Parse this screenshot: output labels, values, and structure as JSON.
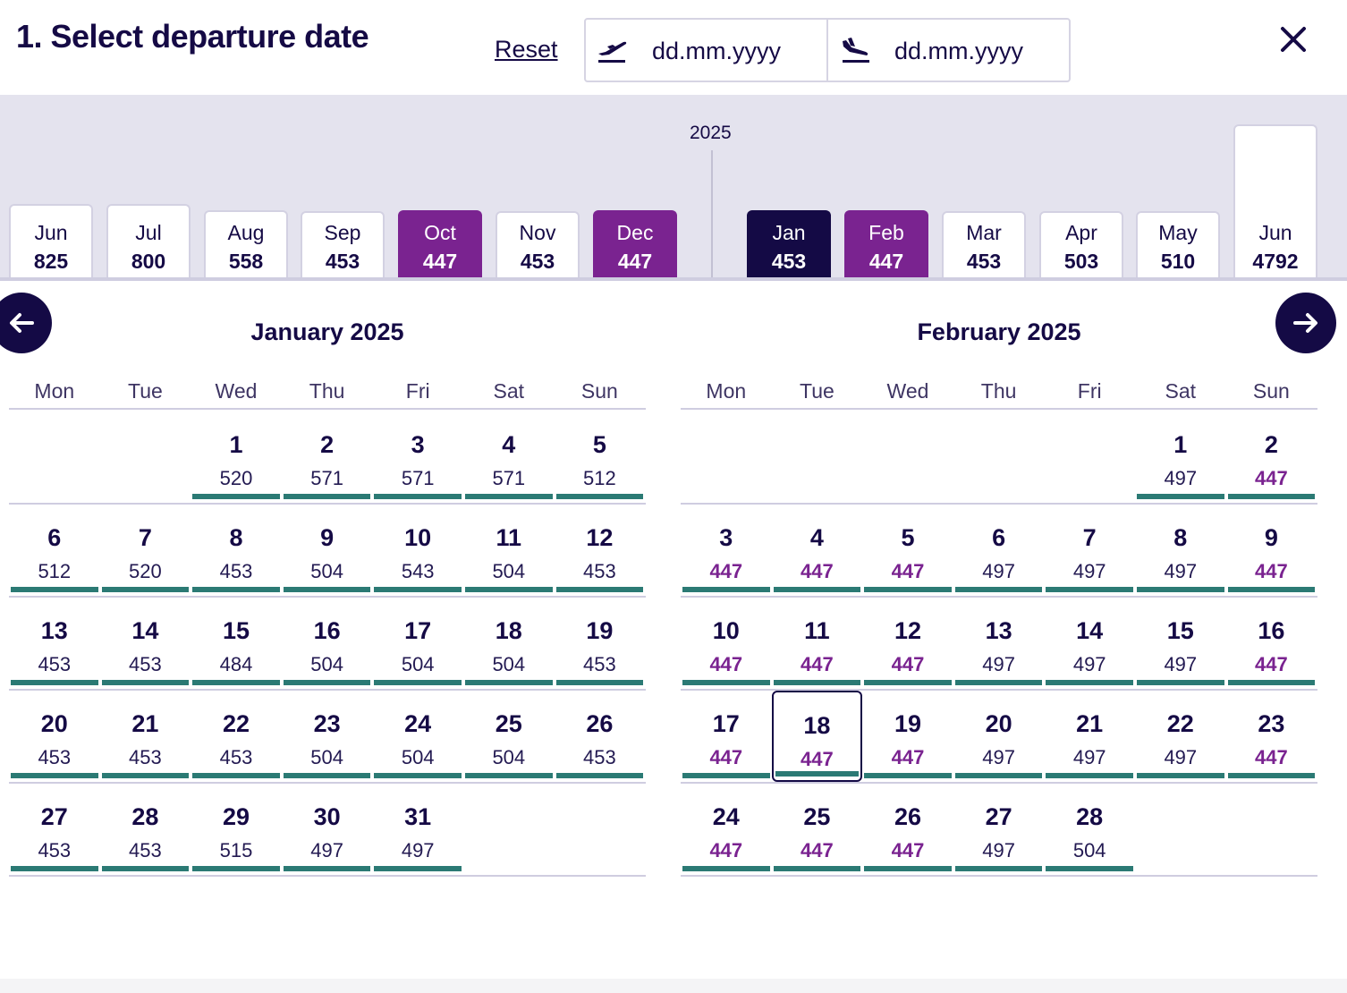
{
  "header": {
    "title": "1. Select departure date",
    "reset_label": "Reset",
    "departure_placeholder": "dd.mm.yyyy",
    "return_placeholder": "dd.mm.yyyy"
  },
  "strip": {
    "year_label": "2025",
    "months": [
      {
        "name": "Jun",
        "price": "825",
        "style": "default"
      },
      {
        "name": "Jul",
        "price": "800",
        "style": "default"
      },
      {
        "name": "Aug",
        "price": "558",
        "style": "default"
      },
      {
        "name": "Sep",
        "price": "453",
        "style": "default"
      },
      {
        "name": "Oct",
        "price": "447",
        "style": "cheapest"
      },
      {
        "name": "Nov",
        "price": "453",
        "style": "default"
      },
      {
        "name": "Dec",
        "price": "447",
        "style": "cheapest"
      },
      {
        "name": "Jan",
        "price": "453",
        "style": "selected"
      },
      {
        "name": "Feb",
        "price": "447",
        "style": "cheapest"
      },
      {
        "name": "Mar",
        "price": "453",
        "style": "default"
      },
      {
        "name": "Apr",
        "price": "503",
        "style": "default"
      },
      {
        "name": "May",
        "price": "510",
        "style": "default"
      },
      {
        "name": "Jun",
        "price": "4792",
        "style": "default"
      }
    ]
  },
  "calendars": [
    {
      "title": "January 2025",
      "weekdays": [
        "Mon",
        "Tue",
        "Wed",
        "Thu",
        "Fri",
        "Sat",
        "Sun"
      ],
      "weeks": [
        [
          null,
          null,
          {
            "d": "1",
            "p": "520"
          },
          {
            "d": "2",
            "p": "571"
          },
          {
            "d": "3",
            "p": "571"
          },
          {
            "d": "4",
            "p": "571"
          },
          {
            "d": "5",
            "p": "512"
          }
        ],
        [
          {
            "d": "6",
            "p": "512"
          },
          {
            "d": "7",
            "p": "520"
          },
          {
            "d": "8",
            "p": "453"
          },
          {
            "d": "9",
            "p": "504"
          },
          {
            "d": "10",
            "p": "543"
          },
          {
            "d": "11",
            "p": "504"
          },
          {
            "d": "12",
            "p": "453"
          }
        ],
        [
          {
            "d": "13",
            "p": "453"
          },
          {
            "d": "14",
            "p": "453"
          },
          {
            "d": "15",
            "p": "484"
          },
          {
            "d": "16",
            "p": "504"
          },
          {
            "d": "17",
            "p": "504"
          },
          {
            "d": "18",
            "p": "504"
          },
          {
            "d": "19",
            "p": "453"
          }
        ],
        [
          {
            "d": "20",
            "p": "453"
          },
          {
            "d": "21",
            "p": "453"
          },
          {
            "d": "22",
            "p": "453"
          },
          {
            "d": "23",
            "p": "504"
          },
          {
            "d": "24",
            "p": "504"
          },
          {
            "d": "25",
            "p": "504"
          },
          {
            "d": "26",
            "p": "453"
          }
        ],
        [
          {
            "d": "27",
            "p": "453"
          },
          {
            "d": "28",
            "p": "453"
          },
          {
            "d": "29",
            "p": "515"
          },
          {
            "d": "30",
            "p": "497"
          },
          {
            "d": "31",
            "p": "497"
          },
          null,
          null
        ]
      ]
    },
    {
      "title": "February 2025",
      "weekdays": [
        "Mon",
        "Tue",
        "Wed",
        "Thu",
        "Fri",
        "Sat",
        "Sun"
      ],
      "weeks": [
        [
          null,
          null,
          null,
          null,
          null,
          {
            "d": "1",
            "p": "497"
          },
          {
            "d": "2",
            "p": "447",
            "cheap": true
          }
        ],
        [
          {
            "d": "3",
            "p": "447",
            "cheap": true
          },
          {
            "d": "4",
            "p": "447",
            "cheap": true
          },
          {
            "d": "5",
            "p": "447",
            "cheap": true
          },
          {
            "d": "6",
            "p": "497"
          },
          {
            "d": "7",
            "p": "497"
          },
          {
            "d": "8",
            "p": "497"
          },
          {
            "d": "9",
            "p": "447",
            "cheap": true
          }
        ],
        [
          {
            "d": "10",
            "p": "447",
            "cheap": true
          },
          {
            "d": "11",
            "p": "447",
            "cheap": true
          },
          {
            "d": "12",
            "p": "447",
            "cheap": true
          },
          {
            "d": "13",
            "p": "497"
          },
          {
            "d": "14",
            "p": "497"
          },
          {
            "d": "15",
            "p": "497"
          },
          {
            "d": "16",
            "p": "447",
            "cheap": true
          }
        ],
        [
          {
            "d": "17",
            "p": "447",
            "cheap": true
          },
          {
            "d": "18",
            "p": "447",
            "cheap": true,
            "selected": true
          },
          {
            "d": "19",
            "p": "447",
            "cheap": true
          },
          {
            "d": "20",
            "p": "497"
          },
          {
            "d": "21",
            "p": "497"
          },
          {
            "d": "22",
            "p": "497"
          },
          {
            "d": "23",
            "p": "447",
            "cheap": true
          }
        ],
        [
          {
            "d": "24",
            "p": "447",
            "cheap": true
          },
          {
            "d": "25",
            "p": "447",
            "cheap": true
          },
          {
            "d": "26",
            "p": "447",
            "cheap": true
          },
          {
            "d": "27",
            "p": "497"
          },
          {
            "d": "28",
            "p": "504"
          },
          null,
          null
        ]
      ]
    }
  ],
  "colors": {
    "navy": "#140a45",
    "purple_cheapest": "#7a2390",
    "availability_bar": "#2b7a74",
    "strip_background": "#e4e3ee"
  },
  "icons": {
    "departure": "plane-takeoff-icon",
    "return": "plane-landing-icon",
    "close": "close-icon",
    "prev": "arrow-left-icon",
    "next": "arrow-right-icon"
  }
}
